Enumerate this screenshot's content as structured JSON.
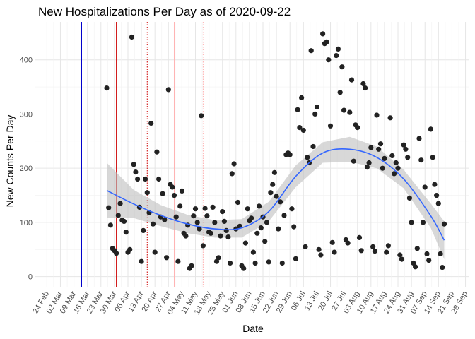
{
  "chart_data": {
    "type": "scatter",
    "title": "New Hospitalizations Per Day as of 2020-09-22",
    "xlabel": "Date",
    "ylabel": "New Counts Per Day",
    "x_axis": {
      "type": "date",
      "min": "2020-02-18",
      "max": "2020-09-30"
    },
    "ylim": [
      -20,
      470
    ],
    "y_ticks": [
      0,
      100,
      200,
      300,
      400
    ],
    "x_ticks": [
      {
        "date": "2020-02-24",
        "label": "24 Feb"
      },
      {
        "date": "2020-03-02",
        "label": "02 Mar"
      },
      {
        "date": "2020-03-09",
        "label": "09 Mar"
      },
      {
        "date": "2020-03-16",
        "label": "16 Mar"
      },
      {
        "date": "2020-03-23",
        "label": "23 Mar"
      },
      {
        "date": "2020-03-30",
        "label": "30 Mar"
      },
      {
        "date": "2020-04-06",
        "label": "06 Apr"
      },
      {
        "date": "2020-04-13",
        "label": "13 Apr"
      },
      {
        "date": "2020-04-20",
        "label": "20 Apr"
      },
      {
        "date": "2020-04-27",
        "label": "27 Apr"
      },
      {
        "date": "2020-05-04",
        "label": "04 May"
      },
      {
        "date": "2020-05-11",
        "label": "11 May"
      },
      {
        "date": "2020-05-18",
        "label": "18 May"
      },
      {
        "date": "2020-05-25",
        "label": "25 May"
      },
      {
        "date": "2020-06-01",
        "label": "01 Jun"
      },
      {
        "date": "2020-06-08",
        "label": "08 Jun"
      },
      {
        "date": "2020-06-15",
        "label": "15 Jun"
      },
      {
        "date": "2020-06-22",
        "label": "22 Jun"
      },
      {
        "date": "2020-06-29",
        "label": "29 Jun"
      },
      {
        "date": "2020-07-06",
        "label": "06 Jul"
      },
      {
        "date": "2020-07-13",
        "label": "13 Jul"
      },
      {
        "date": "2020-07-20",
        "label": "20 Jul"
      },
      {
        "date": "2020-07-27",
        "label": "27 Jul"
      },
      {
        "date": "2020-08-03",
        "label": "03 Aug"
      },
      {
        "date": "2020-08-10",
        "label": "10 Aug"
      },
      {
        "date": "2020-08-17",
        "label": "17 Aug"
      },
      {
        "date": "2020-08-24",
        "label": "24 Aug"
      },
      {
        "date": "2020-08-31",
        "label": "31 Aug"
      },
      {
        "date": "2020-09-07",
        "label": "07 Sep"
      },
      {
        "date": "2020-09-14",
        "label": "14 Sep"
      },
      {
        "date": "2020-09-21",
        "label": "21 Sep"
      },
      {
        "date": "2020-09-28",
        "label": "28 Sep"
      }
    ],
    "grid": true,
    "reference_lines": [
      {
        "date": "2020-03-13",
        "color": "#0000cc",
        "style": "solid"
      },
      {
        "date": "2020-03-31",
        "color": "#cc0000",
        "style": "solid"
      },
      {
        "date": "2020-04-16",
        "color": "#cc0000",
        "style": "dotted"
      },
      {
        "date": "2020-04-30",
        "color": "#ffb3b3",
        "style": "solid"
      },
      {
        "date": "2020-05-15",
        "color": "#ffb3b3",
        "style": "dotted"
      }
    ],
    "colors": {
      "points": "#222222",
      "smooth": "#3366ff",
      "band": "#bebebe"
    },
    "points": [
      {
        "x": "2020-03-26",
        "y": 348
      },
      {
        "x": "2020-03-27",
        "y": 127
      },
      {
        "x": "2020-03-28",
        "y": 95
      },
      {
        "x": "2020-03-29",
        "y": 52
      },
      {
        "x": "2020-03-30",
        "y": 48
      },
      {
        "x": "2020-03-31",
        "y": 43
      },
      {
        "x": "2020-04-01",
        "y": 113
      },
      {
        "x": "2020-04-02",
        "y": 135
      },
      {
        "x": "2020-04-03",
        "y": 104
      },
      {
        "x": "2020-04-04",
        "y": 102
      },
      {
        "x": "2020-04-05",
        "y": 82
      },
      {
        "x": "2020-04-06",
        "y": 45
      },
      {
        "x": "2020-04-07",
        "y": 50
      },
      {
        "x": "2020-04-08",
        "y": 442
      },
      {
        "x": "2020-04-09",
        "y": 207
      },
      {
        "x": "2020-04-10",
        "y": 193
      },
      {
        "x": "2020-04-11",
        "y": 180
      },
      {
        "x": "2020-04-12",
        "y": 128
      },
      {
        "x": "2020-04-13",
        "y": 28
      },
      {
        "x": "2020-04-14",
        "y": 85
      },
      {
        "x": "2020-04-15",
        "y": 180
      },
      {
        "x": "2020-04-16",
        "y": 155
      },
      {
        "x": "2020-04-17",
        "y": 118
      },
      {
        "x": "2020-04-18",
        "y": 283
      },
      {
        "x": "2020-04-19",
        "y": 97
      },
      {
        "x": "2020-04-20",
        "y": 45
      },
      {
        "x": "2020-04-21",
        "y": 230
      },
      {
        "x": "2020-04-22",
        "y": 180
      },
      {
        "x": "2020-04-23",
        "y": 110
      },
      {
        "x": "2020-04-24",
        "y": 153
      },
      {
        "x": "2020-04-25",
        "y": 105
      },
      {
        "x": "2020-04-26",
        "y": 35
      },
      {
        "x": "2020-04-27",
        "y": 345
      },
      {
        "x": "2020-04-28",
        "y": 170
      },
      {
        "x": "2020-04-29",
        "y": 165
      },
      {
        "x": "2020-04-30",
        "y": 150
      },
      {
        "x": "2020-05-01",
        "y": 110
      },
      {
        "x": "2020-05-02",
        "y": 28
      },
      {
        "x": "2020-05-03",
        "y": 130
      },
      {
        "x": "2020-05-04",
        "y": 158
      },
      {
        "x": "2020-05-05",
        "y": 80
      },
      {
        "x": "2020-05-06",
        "y": 75
      },
      {
        "x": "2020-05-07",
        "y": 95
      },
      {
        "x": "2020-05-08",
        "y": 15
      },
      {
        "x": "2020-05-09",
        "y": 20
      },
      {
        "x": "2020-05-10",
        "y": 112
      },
      {
        "x": "2020-05-11",
        "y": 125
      },
      {
        "x": "2020-05-12",
        "y": 100
      },
      {
        "x": "2020-05-13",
        "y": 88
      },
      {
        "x": "2020-05-14",
        "y": 297
      },
      {
        "x": "2020-05-15",
        "y": 57
      },
      {
        "x": "2020-05-16",
        "y": 126
      },
      {
        "x": "2020-05-17",
        "y": 112
      },
      {
        "x": "2020-05-18",
        "y": 82
      },
      {
        "x": "2020-05-19",
        "y": 80
      },
      {
        "x": "2020-05-20",
        "y": 128
      },
      {
        "x": "2020-05-21",
        "y": 100
      },
      {
        "x": "2020-05-22",
        "y": 28
      },
      {
        "x": "2020-05-23",
        "y": 35
      },
      {
        "x": "2020-05-24",
        "y": 75
      },
      {
        "x": "2020-05-25",
        "y": 120
      },
      {
        "x": "2020-05-26",
        "y": 102
      },
      {
        "x": "2020-05-27",
        "y": 85
      },
      {
        "x": "2020-05-28",
        "y": 73
      },
      {
        "x": "2020-05-29",
        "y": 25
      },
      {
        "x": "2020-05-30",
        "y": 190
      },
      {
        "x": "2020-05-31",
        "y": 208
      },
      {
        "x": "2020-06-01",
        "y": 88
      },
      {
        "x": "2020-06-02",
        "y": 137
      },
      {
        "x": "2020-06-03",
        "y": 93
      },
      {
        "x": "2020-06-04",
        "y": 20
      },
      {
        "x": "2020-06-05",
        "y": 15
      },
      {
        "x": "2020-06-06",
        "y": 62
      },
      {
        "x": "2020-06-07",
        "y": 125
      },
      {
        "x": "2020-06-08",
        "y": 103
      },
      {
        "x": "2020-06-09",
        "y": 108
      },
      {
        "x": "2020-06-10",
        "y": 45
      },
      {
        "x": "2020-06-11",
        "y": 25
      },
      {
        "x": "2020-06-12",
        "y": 80
      },
      {
        "x": "2020-06-13",
        "y": 130
      },
      {
        "x": "2020-06-14",
        "y": 90
      },
      {
        "x": "2020-06-15",
        "y": 110
      },
      {
        "x": "2020-06-16",
        "y": 65
      },
      {
        "x": "2020-06-17",
        "y": 100
      },
      {
        "x": "2020-06-18",
        "y": 27
      },
      {
        "x": "2020-06-19",
        "y": 155
      },
      {
        "x": "2020-06-20",
        "y": 170
      },
      {
        "x": "2020-06-21",
        "y": 192
      },
      {
        "x": "2020-06-22",
        "y": 148
      },
      {
        "x": "2020-06-23",
        "y": 88
      },
      {
        "x": "2020-06-24",
        "y": 138
      },
      {
        "x": "2020-06-25",
        "y": 25
      },
      {
        "x": "2020-06-26",
        "y": 113
      },
      {
        "x": "2020-06-27",
        "y": 225
      },
      {
        "x": "2020-06-28",
        "y": 228
      },
      {
        "x": "2020-06-29",
        "y": 225
      },
      {
        "x": "2020-06-30",
        "y": 125
      },
      {
        "x": "2020-07-01",
        "y": 92
      },
      {
        "x": "2020-07-02",
        "y": 33
      },
      {
        "x": "2020-07-03",
        "y": 308
      },
      {
        "x": "2020-07-04",
        "y": 275
      },
      {
        "x": "2020-07-05",
        "y": 330
      },
      {
        "x": "2020-07-06",
        "y": 270
      },
      {
        "x": "2020-07-07",
        "y": 55
      },
      {
        "x": "2020-07-08",
        "y": 220
      },
      {
        "x": "2020-07-09",
        "y": 210
      },
      {
        "x": "2020-07-10",
        "y": 417
      },
      {
        "x": "2020-07-11",
        "y": 240
      },
      {
        "x": "2020-07-12",
        "y": 300
      },
      {
        "x": "2020-07-13",
        "y": 313
      },
      {
        "x": "2020-07-14",
        "y": 50
      },
      {
        "x": "2020-07-15",
        "y": 40
      },
      {
        "x": "2020-07-16",
        "y": 448
      },
      {
        "x": "2020-07-17",
        "y": 430
      },
      {
        "x": "2020-07-18",
        "y": 433
      },
      {
        "x": "2020-07-19",
        "y": 400
      },
      {
        "x": "2020-07-20",
        "y": 278
      },
      {
        "x": "2020-07-21",
        "y": 63
      },
      {
        "x": "2020-07-22",
        "y": 45
      },
      {
        "x": "2020-07-23",
        "y": 408
      },
      {
        "x": "2020-07-24",
        "y": 420
      },
      {
        "x": "2020-07-25",
        "y": 340
      },
      {
        "x": "2020-07-26",
        "y": 387
      },
      {
        "x": "2020-07-27",
        "y": 307
      },
      {
        "x": "2020-07-28",
        "y": 68
      },
      {
        "x": "2020-07-29",
        "y": 62
      },
      {
        "x": "2020-07-30",
        "y": 303
      },
      {
        "x": "2020-07-31",
        "y": 363
      },
      {
        "x": "2020-08-01",
        "y": 213
      },
      {
        "x": "2020-08-02",
        "y": 280
      },
      {
        "x": "2020-08-03",
        "y": 275
      },
      {
        "x": "2020-08-04",
        "y": 72
      },
      {
        "x": "2020-08-05",
        "y": 48
      },
      {
        "x": "2020-08-06",
        "y": 356
      },
      {
        "x": "2020-08-07",
        "y": 348
      },
      {
        "x": "2020-08-08",
        "y": 202
      },
      {
        "x": "2020-08-09",
        "y": 210
      },
      {
        "x": "2020-08-10",
        "y": 238
      },
      {
        "x": "2020-08-11",
        "y": 55
      },
      {
        "x": "2020-08-12",
        "y": 47
      },
      {
        "x": "2020-08-13",
        "y": 298
      },
      {
        "x": "2020-08-14",
        "y": 235
      },
      {
        "x": "2020-08-15",
        "y": 245
      },
      {
        "x": "2020-08-16",
        "y": 200
      },
      {
        "x": "2020-08-17",
        "y": 218
      },
      {
        "x": "2020-08-18",
        "y": 45
      },
      {
        "x": "2020-08-19",
        "y": 57
      },
      {
        "x": "2020-08-20",
        "y": 293
      },
      {
        "x": "2020-08-21",
        "y": 223
      },
      {
        "x": "2020-08-22",
        "y": 190
      },
      {
        "x": "2020-08-23",
        "y": 210
      },
      {
        "x": "2020-08-24",
        "y": 200
      },
      {
        "x": "2020-08-25",
        "y": 40
      },
      {
        "x": "2020-08-26",
        "y": 32
      },
      {
        "x": "2020-08-27",
        "y": 243
      },
      {
        "x": "2020-08-28",
        "y": 235
      },
      {
        "x": "2020-08-29",
        "y": 220
      },
      {
        "x": "2020-08-30",
        "y": 145
      },
      {
        "x": "2020-08-31",
        "y": 100
      },
      {
        "x": "2020-09-01",
        "y": 25
      },
      {
        "x": "2020-09-02",
        "y": 18
      },
      {
        "x": "2020-09-03",
        "y": 52
      },
      {
        "x": "2020-09-04",
        "y": 255
      },
      {
        "x": "2020-09-05",
        "y": 215
      },
      {
        "x": "2020-09-06",
        "y": 100
      },
      {
        "x": "2020-09-07",
        "y": 165
      },
      {
        "x": "2020-09-08",
        "y": 42
      },
      {
        "x": "2020-09-09",
        "y": 30
      },
      {
        "x": "2020-09-10",
        "y": 272
      },
      {
        "x": "2020-09-11",
        "y": 220
      },
      {
        "x": "2020-09-12",
        "y": 170
      },
      {
        "x": "2020-09-13",
        "y": 150
      },
      {
        "x": "2020-09-14",
        "y": 135
      },
      {
        "x": "2020-09-15",
        "y": 42
      },
      {
        "x": "2020-09-16",
        "y": 17
      },
      {
        "x": "2020-09-17",
        "y": 97
      }
    ],
    "smooth_fit": [
      {
        "x": "2020-03-26",
        "y": 159,
        "lo": 109,
        "hi": 210
      },
      {
        "x": "2020-04-09",
        "y": 134,
        "lo": 108,
        "hi": 160
      },
      {
        "x": "2020-04-23",
        "y": 113,
        "lo": 93,
        "hi": 132
      },
      {
        "x": "2020-05-07",
        "y": 97,
        "lo": 80,
        "hi": 114
      },
      {
        "x": "2020-05-21",
        "y": 88,
        "lo": 72,
        "hi": 104
      },
      {
        "x": "2020-06-04",
        "y": 90,
        "lo": 72,
        "hi": 106
      },
      {
        "x": "2020-06-18",
        "y": 120,
        "lo": 102,
        "hi": 138
      },
      {
        "x": "2020-07-02",
        "y": 185,
        "lo": 165,
        "hi": 205
      },
      {
        "x": "2020-07-16",
        "y": 228,
        "lo": 210,
        "hi": 248
      },
      {
        "x": "2020-07-30",
        "y": 235,
        "lo": 212,
        "hi": 258
      },
      {
        "x": "2020-08-13",
        "y": 220,
        "lo": 200,
        "hi": 240
      },
      {
        "x": "2020-08-27",
        "y": 180,
        "lo": 163,
        "hi": 197
      },
      {
        "x": "2020-09-10",
        "y": 112,
        "lo": 90,
        "hi": 135
      },
      {
        "x": "2020-09-17",
        "y": 67,
        "lo": 32,
        "hi": 102
      }
    ]
  }
}
